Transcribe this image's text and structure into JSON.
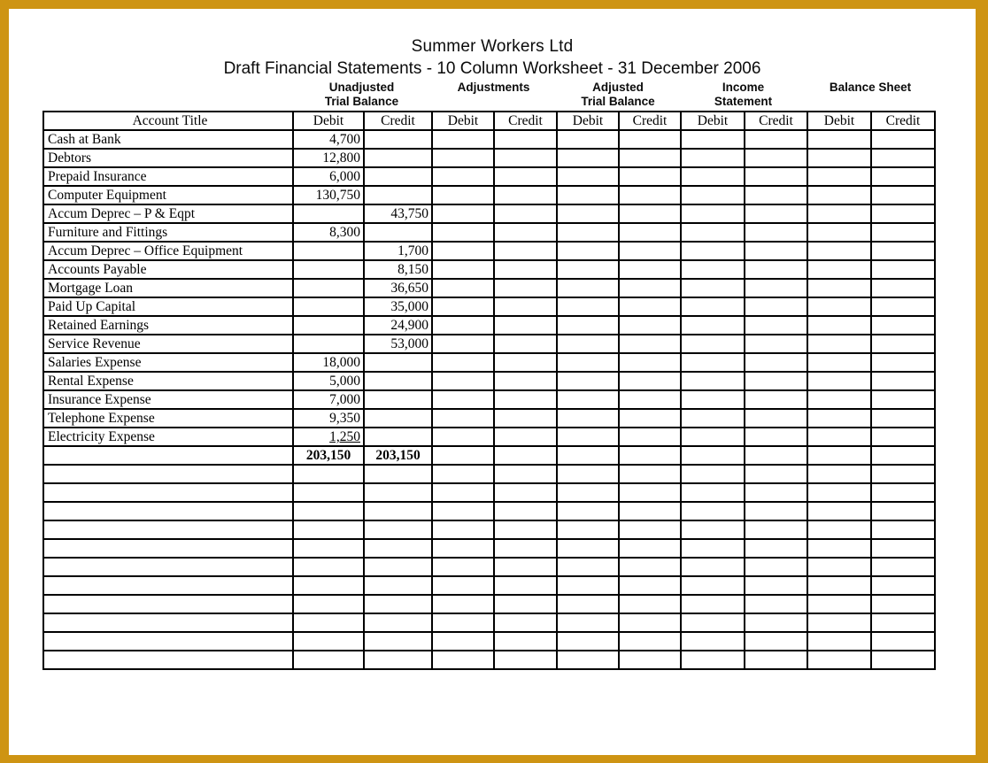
{
  "page": {
    "title": "Summer Workers Ltd",
    "subtitle": "Draft Financial Statements - 10 Column Worksheet - 31 December 2006",
    "frame_color": "#CE9413",
    "grid_color": "#000000"
  },
  "worksheet": {
    "column_groups": [
      {
        "line1": "Unadjusted",
        "line2": "Trial Balance"
      },
      {
        "line1": "Adjustments",
        "line2": ""
      },
      {
        "line1": "Adjusted",
        "line2": "Trial Balance"
      },
      {
        "line1": "Income",
        "line2": "Statement"
      },
      {
        "line1": "Balance Sheet",
        "line2": ""
      }
    ],
    "header": {
      "account_title": "Account Title",
      "sub_headers": [
        "Debit",
        "Credit",
        "Debit",
        "Credit",
        "Debit",
        "Credit",
        "Debit",
        "Credit",
        "Debit",
        "Credit"
      ]
    },
    "rows": [
      {
        "account": "Cash at Bank",
        "utb_debit": "4,700",
        "utb_credit": ""
      },
      {
        "account": "Debtors",
        "utb_debit": "12,800",
        "utb_credit": ""
      },
      {
        "account": "Prepaid Insurance",
        "utb_debit": "6,000",
        "utb_credit": ""
      },
      {
        "account": "Computer Equipment",
        "utb_debit": "130,750",
        "utb_credit": ""
      },
      {
        "account": "Accum Deprec – P & Eqpt",
        "utb_debit": "",
        "utb_credit": "43,750"
      },
      {
        "account": "Furniture and Fittings",
        "utb_debit": "8,300",
        "utb_credit": ""
      },
      {
        "account": "Accum Deprec – Office Equipment",
        "utb_debit": "",
        "utb_credit": "1,700"
      },
      {
        "account": "Accounts Payable",
        "utb_debit": "",
        "utb_credit": "8,150"
      },
      {
        "account": "Mortgage Loan",
        "utb_debit": "",
        "utb_credit": "36,650"
      },
      {
        "account": "Paid Up Capital",
        "utb_debit": "",
        "utb_credit": "35,000"
      },
      {
        "account": "Retained Earnings",
        "utb_debit": "",
        "utb_credit": "24,900"
      },
      {
        "account": "Service Revenue",
        "utb_debit": "",
        "utb_credit": "53,000"
      },
      {
        "account": "Salaries Expense",
        "utb_debit": "18,000",
        "utb_credit": ""
      },
      {
        "account": "Rental Expense",
        "utb_debit": "5,000",
        "utb_credit": ""
      },
      {
        "account": "Insurance Expense",
        "utb_debit": "7,000",
        "utb_credit": ""
      },
      {
        "account": "Telephone Expense",
        "utb_debit": "9,350",
        "utb_credit": ""
      },
      {
        "account": "Electricity Expense",
        "utb_debit": "1,250",
        "utb_credit": "",
        "underline_debit": true
      }
    ],
    "total_row": {
      "utb_debit": "203,150",
      "utb_credit": "203,150"
    },
    "empty_row_count": 11
  }
}
